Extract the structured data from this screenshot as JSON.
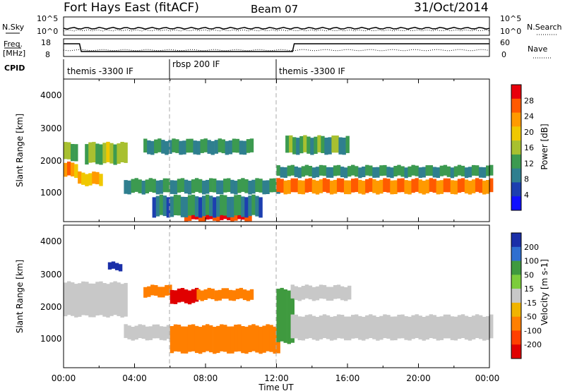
{
  "header": {
    "station": "Fort Hays East (fitACF)",
    "beam": "Beam 07",
    "date": "31/Oct/2014"
  },
  "noise_panel": {
    "left_label": "N.Sky",
    "right_label": "N.Search",
    "left_ticks": [
      "10^5",
      "10^0"
    ],
    "right_ticks": [
      "10^5",
      "10^0"
    ]
  },
  "freq_panel": {
    "left_label_1": "Freq.",
    "left_label_2": "[MHz]",
    "right_label": "Nave",
    "left_ticks": [
      "18",
      "8"
    ],
    "right_ticks": [
      "60",
      "0"
    ]
  },
  "cpid": {
    "label": "CPID",
    "segments": [
      {
        "name": "themis -3300 IF",
        "start_hr": 0,
        "end_hr": 6
      },
      {
        "name": "rbsp 200 IF",
        "start_hr": 6,
        "end_hr": 12
      },
      {
        "name": "themis -3300 IF",
        "start_hr": 12,
        "end_hr": 24
      }
    ]
  },
  "x_axis": {
    "label": "Time UT",
    "ticks": [
      "00:00",
      "04:00",
      "08:00",
      "12:00",
      "16:00",
      "20:00",
      "00:00"
    ]
  },
  "power_panel": {
    "ylabel": "Slant Range [km]",
    "yticks": [
      "4000",
      "3000",
      "2000",
      "1000"
    ],
    "colorbar_label": "Power [dB]",
    "colorbar_ticks": [
      "28",
      "24",
      "20",
      "16",
      "12",
      "8",
      "4"
    ],
    "colors": [
      "#e8000b",
      "#ff5a00",
      "#ff9a00",
      "#f0c800",
      "#a8c030",
      "#3c9a50",
      "#2f7f8f",
      "#1c3fb0",
      "#1010ff"
    ]
  },
  "velocity_panel": {
    "ylabel": "Slant Range [km]",
    "yticks": [
      "4000",
      "3000",
      "2000",
      "1000"
    ],
    "colorbar_label": "Velocity [m s-1]",
    "colorbar_ticks": [
      "200",
      "100",
      "50",
      "15",
      "-15",
      "-50",
      "-100",
      "-200"
    ],
    "colors": [
      "#1a2fa8",
      "#2f6fd0",
      "#3f9a3f",
      "#7ccc3c",
      "#c8c8c8",
      "#f0b400",
      "#ff7f00",
      "#ff4000",
      "#e00000"
    ]
  },
  "chart_data": [
    {
      "type": "heatmap",
      "title": "Power [dB]",
      "x_range_hr": [
        0,
        24
      ],
      "y_range_km": [
        180,
        4500
      ],
      "xlabel": "Time UT",
      "ylabel": "Slant Range [km]",
      "value_range": [
        0,
        30
      ],
      "bands": [
        {
          "t0": 0.0,
          "t1": 0.8,
          "r0": 1500,
          "r1": 2000,
          "value": 22
        },
        {
          "t0": 0.0,
          "t1": 0.8,
          "r0": 2000,
          "r1": 2600,
          "value": 12
        },
        {
          "t0": 0.8,
          "t1": 2.0,
          "r0": 1250,
          "r1": 1700,
          "value": 20
        },
        {
          "t0": 1.2,
          "t1": 3.5,
          "r0": 1900,
          "r1": 2600,
          "value": 14
        },
        {
          "t0": 3.4,
          "t1": 12.0,
          "r0": 1000,
          "r1": 1500,
          "value": 10
        },
        {
          "t0": 6.8,
          "t1": 10.5,
          "r0": 180,
          "r1": 450,
          "value": 29
        },
        {
          "t0": 5.0,
          "t1": 11.0,
          "r0": 300,
          "r1": 1000,
          "value": 8
        },
        {
          "t0": 4.5,
          "t1": 10.5,
          "r0": 2200,
          "r1": 2700,
          "value": 9
        },
        {
          "t0": 12.0,
          "t1": 24.0,
          "r0": 1000,
          "r1": 1500,
          "value": 24
        },
        {
          "t0": 12.0,
          "t1": 24.0,
          "r0": 1500,
          "r1": 1900,
          "value": 10
        },
        {
          "t0": 12.5,
          "t1": 16.0,
          "r0": 2200,
          "r1": 2800,
          "value": 11
        }
      ]
    },
    {
      "type": "heatmap",
      "title": "Velocity [m s-1]",
      "x_range_hr": [
        0,
        24
      ],
      "y_range_km": [
        180,
        4500
      ],
      "xlabel": "Time UT",
      "ylabel": "Slant Range [km]",
      "value_range": [
        -200,
        200
      ],
      "bands": [
        {
          "t0": 0.0,
          "t1": 3.5,
          "r0": 1700,
          "r1": 2800,
          "value": 0
        },
        {
          "t0": 2.5,
          "t1": 3.2,
          "r0": 3100,
          "r1": 3400,
          "value": 200
        },
        {
          "t0": 3.4,
          "t1": 6.0,
          "r0": 1000,
          "r1": 1500,
          "value": 0
        },
        {
          "t0": 4.5,
          "t1": 6.0,
          "r0": 2300,
          "r1": 2700,
          "value": -60
        },
        {
          "t0": 6.0,
          "t1": 7.5,
          "r0": 2100,
          "r1": 2600,
          "value": -200
        },
        {
          "t0": 7.5,
          "t1": 10.5,
          "r0": 2200,
          "r1": 2600,
          "value": -50
        },
        {
          "t0": 6.0,
          "t1": 12.0,
          "r0": 600,
          "r1": 1500,
          "value": -40
        },
        {
          "t0": 12.0,
          "t1": 12.8,
          "r0": 900,
          "r1": 2600,
          "value": 40
        },
        {
          "t0": 12.8,
          "t1": 24.0,
          "r0": 1000,
          "r1": 1800,
          "value": 0
        },
        {
          "t0": 12.8,
          "t1": 16.0,
          "r0": 2200,
          "r1": 2700,
          "value": 0
        }
      ]
    }
  ]
}
